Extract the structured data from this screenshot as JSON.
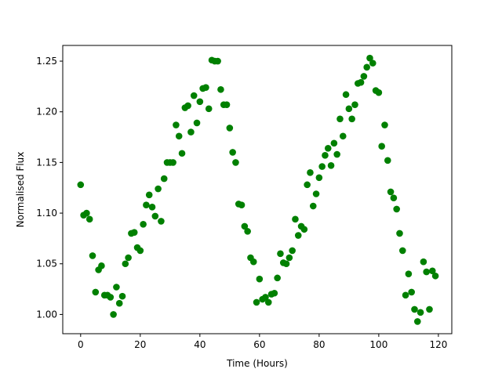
{
  "chart_data": {
    "type": "scatter",
    "x_label": "Time (Hours)",
    "y_label": "Normalised Flux",
    "color": "#008000",
    "x": [
      0,
      1,
      2,
      3,
      4,
      5,
      6,
      7,
      8,
      9,
      10,
      11,
      12,
      13,
      14,
      15,
      16,
      17,
      18,
      19,
      20,
      21,
      22,
      23,
      24,
      25,
      26,
      27,
      28,
      29,
      30,
      31,
      32,
      33,
      34,
      35,
      36,
      37,
      38,
      39,
      40,
      41,
      42,
      43,
      44,
      45,
      46,
      47,
      48,
      49,
      50,
      51,
      52,
      53,
      54,
      55,
      56,
      57,
      58,
      59,
      60,
      61,
      62,
      63,
      64,
      65,
      66,
      67,
      68,
      69,
      70,
      71,
      72,
      73,
      74,
      75,
      76,
      77,
      78,
      79,
      80,
      81,
      82,
      83,
      84,
      85,
      86,
      87,
      88,
      89,
      90,
      91,
      92,
      93,
      94,
      95,
      96,
      97,
      98,
      99,
      100,
      101,
      102,
      103,
      104,
      105,
      106,
      107,
      108,
      109,
      110,
      111,
      112,
      113,
      114,
      115,
      116,
      117,
      118,
      119
    ],
    "y": [
      1.128,
      1.098,
      1.1,
      1.094,
      1.058,
      1.022,
      1.044,
      1.048,
      1.019,
      1.019,
      1.017,
      1.0,
      1.027,
      1.011,
      1.018,
      1.05,
      1.056,
      1.08,
      1.081,
      1.066,
      1.063,
      1.089,
      1.108,
      1.118,
      1.106,
      1.097,
      1.124,
      1.092,
      1.134,
      1.15,
      1.15,
      1.15,
      1.187,
      1.176,
      1.159,
      1.204,
      1.206,
      1.18,
      1.216,
      1.189,
      1.21,
      1.223,
      1.224,
      1.203,
      1.251,
      1.25,
      1.25,
      1.222,
      1.207,
      1.207,
      1.184,
      1.16,
      1.15,
      1.109,
      1.108,
      1.087,
      1.082,
      1.056,
      1.052,
      1.012,
      1.035,
      1.015,
      1.017,
      1.012,
      1.02,
      1.021,
      1.036,
      1.06,
      1.051,
      1.05,
      1.056,
      1.063,
      1.094,
      1.078,
      1.087,
      1.084,
      1.128,
      1.14,
      1.107,
      1.119,
      1.135,
      1.146,
      1.157,
      1.164,
      1.147,
      1.169,
      1.158,
      1.193,
      1.176,
      1.217,
      1.203,
      1.193,
      1.207,
      1.228,
      1.229,
      1.235,
      1.244,
      1.253,
      1.248,
      1.221,
      1.219,
      1.166,
      1.187,
      1.152,
      1.121,
      1.115,
      1.104,
      1.08,
      1.063,
      1.019,
      1.04,
      1.022,
      1.005,
      0.993,
      1.002,
      1.052,
      1.042,
      1.005,
      1.043,
      1.038
    ],
    "xlim": [
      -6,
      124.5
    ],
    "ylim": [
      0.981,
      1.2655
    ],
    "xticks": [
      0,
      20,
      40,
      60,
      80,
      100,
      120
    ],
    "yticks": [
      {
        "value": 1.0,
        "label": "1.00"
      },
      {
        "value": 1.05,
        "label": "1.05"
      },
      {
        "value": 1.1,
        "label": "1.10"
      },
      {
        "value": 1.15,
        "label": "1.15"
      },
      {
        "value": 1.2,
        "label": "1.20"
      },
      {
        "value": 1.25,
        "label": "1.25"
      }
    ]
  }
}
